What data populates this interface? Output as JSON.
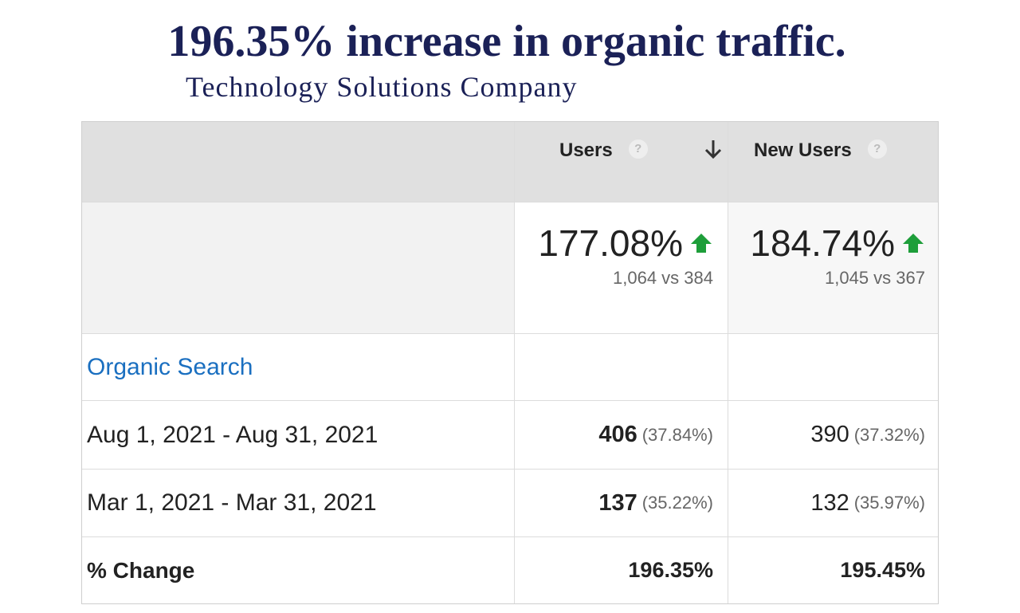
{
  "header": {
    "title": "196.35% increase in organic traffic.",
    "subtitle": "Technology Solutions Company"
  },
  "table": {
    "columns": [
      "Users",
      "New Users"
    ],
    "summary": [
      {
        "change": "177.08%",
        "comparison": "1,064 vs 384"
      },
      {
        "change": "184.74%",
        "comparison": "1,045 vs 367"
      }
    ],
    "group": "Organic Search",
    "rows": [
      {
        "label": "Aug 1, 2021 - Aug 31, 2021",
        "cells": [
          {
            "value": "406",
            "share": "(37.84%)"
          },
          {
            "value": "390",
            "share": "(37.32%)"
          }
        ]
      },
      {
        "label": "Mar 1, 2021 - Mar 31, 2021",
        "cells": [
          {
            "value": "137",
            "share": "(35.22%)"
          },
          {
            "value": "132",
            "share": "(35.97%)"
          }
        ]
      },
      {
        "label": "% Change",
        "cells": [
          {
            "value": "196.35%"
          },
          {
            "value": "195.45%"
          }
        ]
      }
    ]
  }
}
